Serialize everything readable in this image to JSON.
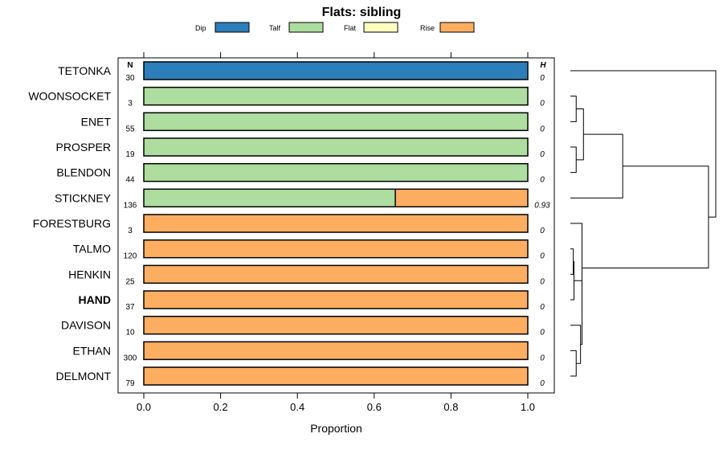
{
  "chart_data": {
    "type": "bar",
    "orientation": "horizontal-stacked",
    "title": "Flats: sibling",
    "xlabel": "Proportion",
    "xlim": [
      0,
      1
    ],
    "x_ticks": [
      "0.0",
      "0.2",
      "0.4",
      "0.6",
      "0.8",
      "1.0"
    ],
    "n_header": "N",
    "h_header": "H",
    "legend": [
      {
        "name": "Dip",
        "color": "#2c7fb8"
      },
      {
        "name": "Talf",
        "color": "#addd9f"
      },
      {
        "name": "Flat",
        "color": "#ffffbf"
      },
      {
        "name": "Rise",
        "color": "#fdae61"
      }
    ],
    "categories": [
      {
        "label": "TETONKA",
        "n": "30",
        "h": "0",
        "bold": false
      },
      {
        "label": "WOONSOCKET",
        "n": "3",
        "h": "0",
        "bold": false
      },
      {
        "label": "ENET",
        "n": "55",
        "h": "0",
        "bold": false
      },
      {
        "label": "PROSPER",
        "n": "19",
        "h": "0",
        "bold": false
      },
      {
        "label": "BLENDON",
        "n": "44",
        "h": "0",
        "bold": false
      },
      {
        "label": "STICKNEY",
        "n": "136",
        "h": "0.93",
        "bold": false
      },
      {
        "label": "FORESTBURG",
        "n": "3",
        "h": "0",
        "bold": false
      },
      {
        "label": "TALMO",
        "n": "120",
        "h": "0",
        "bold": false
      },
      {
        "label": "HENKIN",
        "n": "25",
        "h": "0",
        "bold": false
      },
      {
        "label": "HAND",
        "n": "37",
        "h": "0",
        "bold": true
      },
      {
        "label": "DAVISON",
        "n": "10",
        "h": "0",
        "bold": false
      },
      {
        "label": "ETHAN",
        "n": "300",
        "h": "0",
        "bold": false
      },
      {
        "label": "DELMONT",
        "n": "79",
        "h": "0",
        "bold": false
      }
    ],
    "series": [
      {
        "name": "Dip",
        "values": [
          1,
          0,
          0,
          0,
          0,
          0,
          0,
          0,
          0,
          0,
          0,
          0,
          0
        ]
      },
      {
        "name": "Talf",
        "values": [
          0,
          1,
          1,
          1,
          1,
          0.655,
          0,
          0,
          0,
          0,
          0,
          0,
          0
        ]
      },
      {
        "name": "Flat",
        "values": [
          0,
          0,
          0,
          0,
          0,
          0,
          0,
          0,
          0,
          0,
          0,
          0,
          0
        ]
      },
      {
        "name": "Rise",
        "values": [
          0,
          0,
          0,
          0,
          0,
          0.345,
          1,
          1,
          1,
          1,
          1,
          1,
          1
        ]
      }
    ],
    "dendrogram": {
      "leaves": [
        "TETONKA",
        "WOONSOCKET",
        "ENET",
        "PROSPER",
        "BLENDON",
        "STICKNEY",
        "FORESTBURG",
        "TALMO",
        "HENKIN",
        "HAND",
        "DAVISON",
        "ETHAN",
        "DELMONT"
      ],
      "merges": [
        {
          "a": {
            "leaf": 1
          },
          "b": {
            "leaf": 2
          },
          "height": 0.04
        },
        {
          "a": {
            "leaf": 3
          },
          "b": {
            "leaf": 4
          },
          "height": 0.04
        },
        {
          "a": {
            "merge": 0
          },
          "b": {
            "merge": 1
          },
          "height": 0.09
        },
        {
          "a": {
            "merge": 2
          },
          "b": {
            "leaf": 5
          },
          "height": 0.36
        },
        {
          "a": {
            "leaf": 7
          },
          "b": {
            "leaf": 8
          },
          "height": 0.02
        },
        {
          "a": {
            "merge": 4
          },
          "b": {
            "leaf": 9
          },
          "height": 0.025
        },
        {
          "a": {
            "leaf": 11
          },
          "b": {
            "leaf": 12
          },
          "height": 0.04
        },
        {
          "a": {
            "leaf": 10
          },
          "b": {
            "merge": 6
          },
          "height": 0.07
        },
        {
          "a": {
            "merge": 5
          },
          "b": {
            "merge": 7
          },
          "height": 0.08
        },
        {
          "a": {
            "leaf": 6
          },
          "b": {
            "merge": 8
          },
          "height": 0.08
        },
        {
          "a": {
            "merge": 3
          },
          "b": {
            "merge": 9
          },
          "height": 0.95
        },
        {
          "a": {
            "leaf": 0
          },
          "b": {
            "merge": 10
          },
          "height": 1.0
        }
      ]
    }
  }
}
